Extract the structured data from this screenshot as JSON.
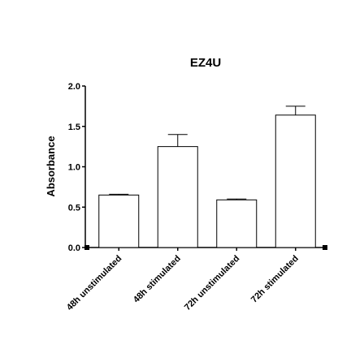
{
  "chart_data": {
    "type": "bar",
    "title": "EZ4U",
    "xlabel": "",
    "ylabel": "Absorbance",
    "ylim": [
      0,
      2.0
    ],
    "yticks": [
      "0.0",
      "0.5",
      "1.0",
      "1.5",
      "2.0"
    ],
    "categories": [
      "48h unstimulated",
      "48h stimulated",
      "72h unstimulated",
      "72h stimulated"
    ],
    "values": [
      0.65,
      1.25,
      0.59,
      1.64
    ],
    "errors": [
      0.01,
      0.15,
      0.01,
      0.11
    ],
    "grid": false,
    "legend": "none",
    "colors": {
      "bar_fill": "#ffffff",
      "bar_stroke": "#000000",
      "axis": "#000000"
    }
  }
}
